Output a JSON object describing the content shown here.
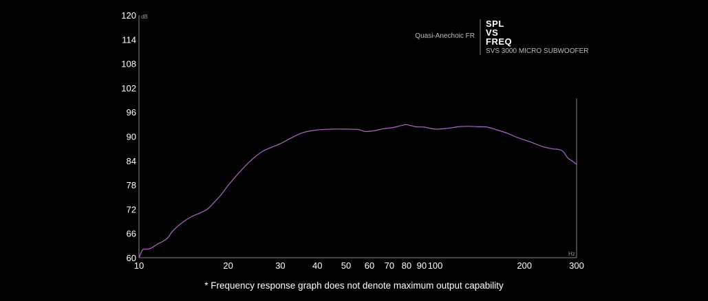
{
  "chart_data": {
    "type": "line",
    "legend_label": "Quasi-Anechoic FR",
    "title_lines": [
      "SPL",
      "VS",
      "FREQ"
    ],
    "product": "SVS 3000 MICRO SUBWOOFER",
    "ylabel_unit": "dB",
    "xlabel_unit": "Hz",
    "x_scale": "log",
    "xlim": [
      10,
      300
    ],
    "ylim": [
      60,
      120
    ],
    "y_ticks": [
      60,
      66,
      72,
      78,
      84,
      90,
      96,
      102,
      108,
      114,
      120
    ],
    "x_ticks": [
      10,
      20,
      30,
      40,
      50,
      60,
      70,
      80,
      90,
      100,
      200,
      300
    ],
    "line_color": "#b267c8",
    "series": [
      {
        "x": [
          10,
          10.3,
          10.6,
          11,
          11.5,
          12,
          12.5,
          13,
          14,
          15,
          16,
          17,
          18,
          19,
          20,
          22,
          24,
          26,
          28,
          30,
          33,
          36,
          40,
          45,
          50,
          55,
          58,
          62,
          67,
          72,
          77,
          80,
          86,
          92,
          100,
          110,
          120,
          130,
          140,
          150,
          160,
          175,
          190,
          210,
          230,
          250,
          260,
          270,
          280,
          290,
          300
        ],
        "y": [
          60.0,
          62.0,
          62.1,
          62.4,
          63.3,
          64.0,
          64.9,
          66.6,
          68.7,
          70.1,
          71.0,
          72.0,
          73.8,
          75.7,
          77.9,
          81.4,
          84.2,
          86.2,
          87.3,
          88.2,
          89.8,
          91.0,
          91.6,
          91.8,
          91.8,
          91.7,
          91.2,
          91.4,
          91.9,
          92.2,
          92.7,
          92.9,
          92.4,
          92.3,
          91.8,
          92.0,
          92.4,
          92.5,
          92.4,
          92.3,
          91.7,
          90.8,
          89.7,
          88.6,
          87.5,
          86.9,
          86.8,
          86.3,
          84.7,
          83.9,
          83.1
        ]
      }
    ]
  },
  "footnote": "* Frequency response graph does not denote maximum output capability"
}
